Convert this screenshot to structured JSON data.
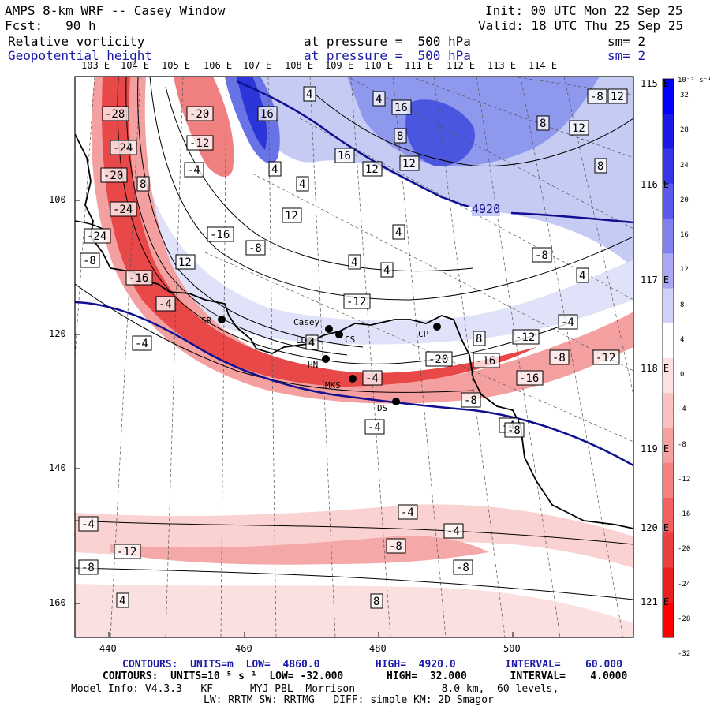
{
  "header": {
    "title": "AMPS 8-km WRF -- Casey Window",
    "init": "Init: 00 UTC Mon 22 Sep 25",
    "fcst": "Fcst:   90 h",
    "valid": "Valid: 18 UTC Thu 25 Sep 25",
    "field1_name": "Relative vorticity",
    "field1_level": "at pressure =  500 hPa",
    "field1_sm": "sm= 2",
    "field2_name": "Geopotential height",
    "field2_level": "at pressure =  500 hPa",
    "field2_sm": "sm= 2"
  },
  "colors": {
    "positive_vorticity": "#2a2ae0",
    "negative_vorticity": "#e83030",
    "height_contour": "#101090",
    "coast": "#000000"
  },
  "map": {
    "top_lon_labels": [
      "103 E",
      "104 E",
      "105 E",
      "106 E",
      "107 E",
      "108 E",
      "109 E",
      "110 E",
      "111 E",
      "112 E",
      "113 E",
      "114 E"
    ],
    "right_lat_labels": [
      "115 E",
      "116 E",
      "117 E",
      "118 E",
      "119 E",
      "120 E",
      "121 E"
    ],
    "left_ticks": [
      "100",
      "120",
      "140",
      "160"
    ],
    "bottom_ticks": [
      "440",
      "460",
      "480",
      "500"
    ],
    "height_label": "4920",
    "stations": [
      {
        "name": "SR"
      },
      {
        "name": "Casey"
      },
      {
        "name": "CS"
      },
      {
        "name": "LD"
      },
      {
        "name": "CP"
      },
      {
        "name": "HN"
      },
      {
        "name": "MKS"
      },
      {
        "name": "DS"
      }
    ],
    "vorticity_labels": [
      "-28",
      "-24",
      "-20",
      "-24",
      "-24",
      "-20",
      "-12",
      "-4",
      "16",
      "4",
      "4",
      "8",
      "12",
      "16",
      "12",
      "8",
      "12",
      "16",
      "4",
      "4",
      "-16",
      "-4",
      "-8",
      "12",
      "-16",
      "-4",
      "-12",
      "4",
      "4",
      "4",
      "8",
      "12",
      "8",
      "4",
      "-8",
      "-4",
      "-12",
      "-20",
      "-16",
      "-8",
      "-12",
      "-16",
      "-4",
      "-8",
      "-4",
      "-4",
      "-8",
      "-4",
      "-12",
      "-8",
      "-8",
      "-4",
      "-8",
      "4",
      "8",
      "-4",
      "-8",
      "12",
      "8",
      "4",
      "-8",
      "-4",
      "-4"
    ]
  },
  "colorbar": {
    "unit": "10⁻⁵ s⁻¹",
    "labels": [
      "32",
      "28",
      "24",
      "20",
      "16",
      "12",
      "8",
      "4",
      "0",
      "-4",
      "-8",
      "-12",
      "-16",
      "-20",
      "-24",
      "-28",
      "-32"
    ]
  },
  "footer": {
    "line1": "CONTOURS:  UNITS=m  LOW=  4860.0         HIGH=  4920.0        INTERVAL=    60.000",
    "line2": "CONTOURS:  UNITS=10⁻⁵ s⁻¹  LOW= -32.000       HIGH=  32.000       INTERVAL=    4.0000",
    "line3": "Model Info: V4.3.3   KF      MYJ PBL  Morrison              8.0 km,  60 levels,",
    "line4": "LW: RRTM SW: RRTMG   DIFF: simple KM: 2D Smagor"
  }
}
